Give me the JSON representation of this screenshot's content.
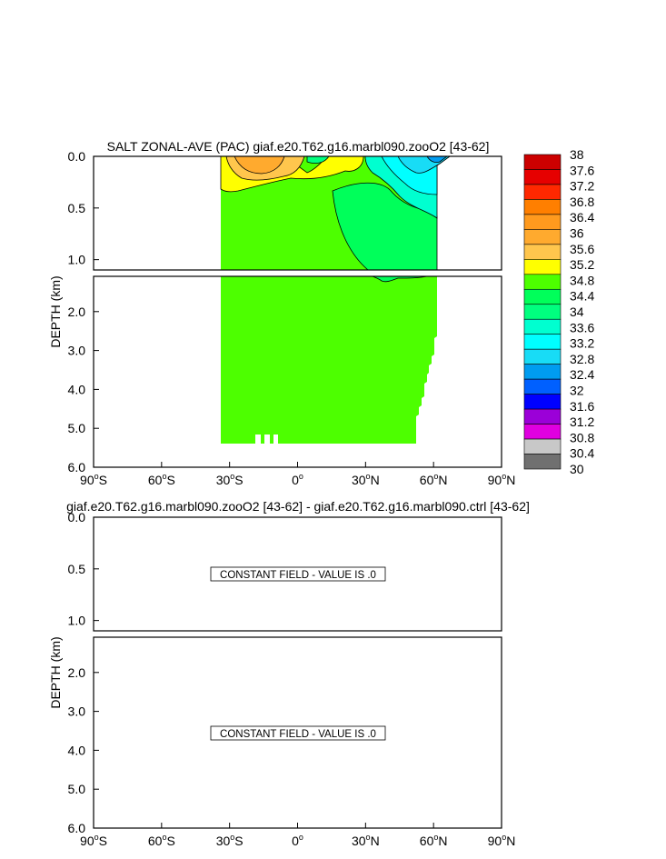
{
  "chart_data": [
    {
      "type": "heatmap",
      "title": "SALT ZONAL-AVE (PAC) giaf.e20.T62.g16.marbl090.zooO2 [43-62]",
      "ylabel": "DEPTH (km)",
      "xlabel": "",
      "x_ticks": [
        "90°S",
        "60°S",
        "30°S",
        "0°",
        "30°N",
        "60°N",
        "90°N"
      ],
      "x_tick_values": [
        -90,
        -60,
        -30,
        0,
        30,
        60,
        90
      ],
      "y_ticks_upper": [
        "0.0",
        "0.5",
        "1.0"
      ],
      "y_ticks_lower": [
        "2.0",
        "3.0",
        "4.0",
        "5.0",
        "6.0"
      ],
      "xlim": [
        -90,
        90
      ],
      "ylim_upper_km": [
        0,
        1.1
      ],
      "ylim_lower_km": [
        1.1,
        6.0
      ],
      "colorbar_levels": [
        "38",
        "37.6",
        "37.2",
        "36.8",
        "36.4",
        "36",
        "35.6",
        "35.2",
        "34.8",
        "34.4",
        "34",
        "33.6",
        "33.2",
        "32.8",
        "32.4",
        "32",
        "31.6",
        "31.2",
        "30.8",
        "30.4",
        "30"
      ],
      "colorbar_colors": [
        "#cc0000",
        "#e60000",
        "#ff2800",
        "#ff7f00",
        "#ff9a1e",
        "#ffaa2e",
        "#ffc64d",
        "#ffff00",
        "#4dff00",
        "#00ff5a",
        "#00ff7f",
        "#00ffd0",
        "#00ffff",
        "#18dcf6",
        "#009cf0",
        "#0060ff",
        "#0000ff",
        "#9b00d8",
        "#e000e0",
        "#c8c8c8",
        "#707070"
      ],
      "regions_upper": [
        {
          "value_class": "34.4-34.8",
          "x_range": [
            -35,
            62
          ],
          "depth_range_km": [
            0,
            1.1
          ]
        },
        {
          "value_class": "34.8-35.2",
          "x_range": [
            -35,
            28
          ],
          "depth_range_km": [
            0,
            0.35
          ]
        },
        {
          "value_class": "35.2-35.6",
          "x_range": [
            -30,
            5
          ],
          "depth_range_km": [
            0,
            0.18
          ]
        },
        {
          "value_class": "35.6-36",
          "x_range": [
            -28,
            -12
          ],
          "depth_range_km": [
            0,
            0.14
          ]
        },
        {
          "value_class": "34-34.4",
          "x_range": [
            15,
            62
          ],
          "depth_range_km": [
            0.3,
            1.1
          ]
        },
        {
          "value_class": "33.2-33.6",
          "x_range": [
            32,
            67
          ],
          "depth_range_km": [
            0,
            0.4
          ]
        },
        {
          "value_class": "32.8-33.2",
          "x_range": [
            40,
            67
          ],
          "depth_range_km": [
            0,
            0.25
          ]
        },
        {
          "value_class": "32.4-32.8",
          "x_range": [
            55,
            67
          ],
          "depth_range_km": [
            0,
            0.08
          ]
        }
      ],
      "regions_lower": [
        {
          "value_class": "34.4-34.8",
          "x_range": [
            -35,
            62
          ],
          "depth_range_km": [
            1.1,
            5.4
          ]
        }
      ]
    },
    {
      "type": "heatmap",
      "title": "giaf.e20.T62.g16.marbl090.zooO2 [43-62] - giaf.e20.T62.g16.marbl090.ctrl [43-62]",
      "ylabel": "DEPTH (km)",
      "x_ticks": [
        "90°S",
        "60°S",
        "30°S",
        "0°",
        "30°N",
        "60°N",
        "90°N"
      ],
      "y_ticks_upper": [
        "0.0",
        "0.5",
        "1.0"
      ],
      "y_ticks_lower": [
        "2.0",
        "3.0",
        "4.0",
        "5.0",
        "6.0"
      ],
      "annotation_upper": "CONSTANT FIELD - VALUE IS .0",
      "annotation_lower": "CONSTANT FIELD - VALUE IS .0"
    }
  ]
}
